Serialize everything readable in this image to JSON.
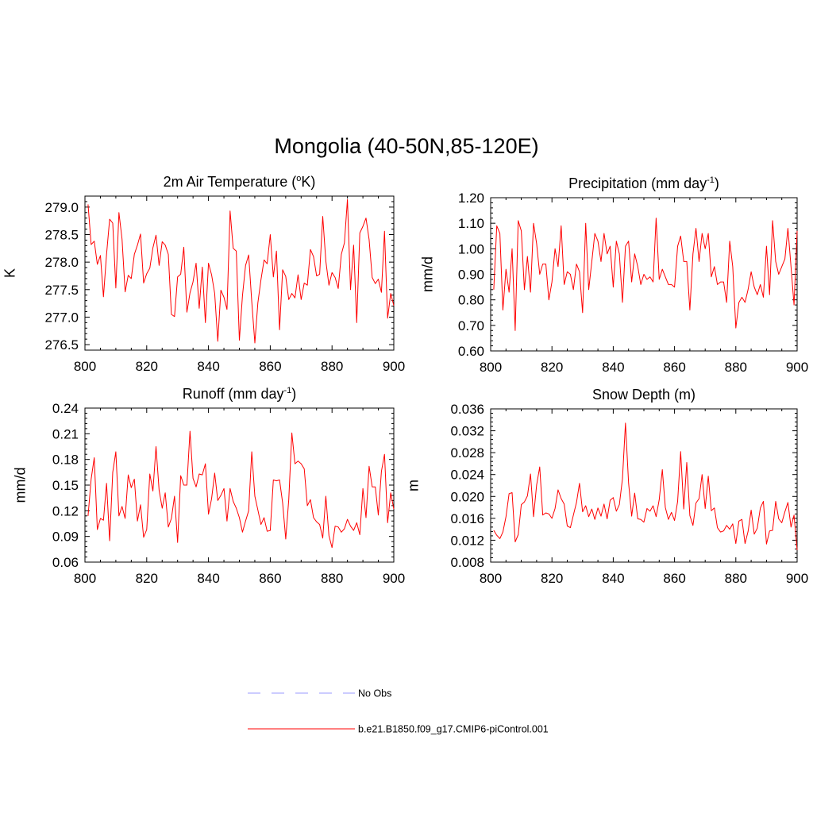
{
  "title": "Mongolia (40-50N,85-120E)",
  "line_color": "#ff0000",
  "obs_color": "#9999ff",
  "legend": {
    "obs_label": "No Obs",
    "model_label": "b.e21.B1850.f09_g17.CMIP6-piControl.001"
  },
  "chart_data": [
    {
      "type": "line",
      "title": "2m Air Temperature (",
      "title_sup": "o",
      "title_after": "K)",
      "ylabel": "K",
      "xlim": [
        800,
        900
      ],
      "ylim": [
        276.4,
        279.2
      ],
      "xticks": [
        800,
        820,
        840,
        860,
        880,
        900
      ],
      "xticklabels": [
        "800",
        "820",
        "840",
        "860",
        "880",
        "900"
      ],
      "yticks": [
        276.5,
        277.0,
        277.5,
        278.0,
        278.5,
        279.0
      ],
      "yticklabels": [
        "276.5",
        "277.0",
        "277.5",
        "278.0",
        "278.5",
        "279.0"
      ],
      "x_start": 801,
      "values": [
        279.05,
        278.32,
        278.38,
        277.96,
        278.12,
        277.37,
        278.14,
        278.78,
        278.71,
        277.53,
        278.9,
        278.42,
        277.46,
        277.76,
        277.7,
        278.14,
        278.31,
        278.51,
        277.62,
        277.79,
        277.89,
        278.26,
        278.49,
        277.94,
        278.37,
        278.31,
        278.14,
        277.05,
        277.01,
        277.73,
        277.78,
        278.27,
        277.09,
        277.44,
        277.64,
        277.98,
        277.16,
        277.91,
        276.9,
        277.98,
        277.77,
        277.43,
        276.56,
        277.49,
        277.36,
        277.14,
        278.93,
        278.25,
        278.2,
        276.58,
        277.39,
        277.94,
        278.13,
        277.28,
        276.53,
        277.26,
        277.68,
        278.04,
        277.97,
        278.5,
        277.73,
        278.2,
        276.77,
        277.86,
        277.74,
        277.32,
        277.43,
        277.35,
        277.77,
        277.32,
        277.62,
        277.58,
        278.23,
        278.1,
        277.75,
        277.78,
        278.83,
        278.02,
        277.58,
        277.81,
        277.72,
        277.52,
        278.14,
        278.35,
        279.14,
        277.5,
        278.31,
        276.9,
        278.53,
        278.65,
        278.8,
        278.41,
        277.72,
        277.61,
        277.69,
        277.45,
        278.56,
        276.98,
        277.43,
        277.21
      ]
    },
    {
      "type": "line",
      "title": "Precipitation (mm day",
      "title_sup": "-1",
      "title_after": ")",
      "ylabel": "mm/d",
      "xlim": [
        800,
        900
      ],
      "ylim": [
        0.6,
        1.2
      ],
      "xticks": [
        800,
        820,
        840,
        860,
        880,
        900
      ],
      "xticklabels": [
        "800",
        "820",
        "840",
        "860",
        "880",
        "900"
      ],
      "yticks": [
        0.6,
        0.7,
        0.8,
        0.9,
        1.0,
        1.1,
        1.2
      ],
      "yticklabels": [
        "0.60",
        "0.70",
        "0.80",
        "0.90",
        "1.00",
        "1.10",
        "1.20"
      ],
      "x_start": 801,
      "values": [
        0.84,
        1.09,
        1.06,
        0.76,
        0.92,
        0.83,
        1.0,
        0.68,
        1.11,
        1.07,
        0.84,
        0.97,
        0.83,
        1.1,
        1.02,
        0.9,
        0.94,
        0.94,
        0.8,
        0.87,
        1.0,
        0.93,
        1.09,
        0.86,
        0.91,
        0.9,
        0.84,
        0.94,
        0.91,
        0.75,
        1.1,
        0.84,
        0.95,
        1.06,
        1.03,
        0.95,
        1.06,
        0.98,
        1.01,
        0.85,
        1.03,
        0.98,
        0.79,
        1.01,
        1.03,
        0.87,
        0.98,
        0.93,
        0.86,
        0.9,
        0.88,
        0.89,
        0.87,
        1.12,
        0.88,
        0.92,
        0.89,
        0.86,
        0.86,
        0.85,
        1.01,
        1.05,
        0.95,
        0.95,
        0.76,
        0.98,
        1.08,
        0.95,
        1.06,
        1.0,
        1.06,
        0.89,
        0.93,
        0.86,
        0.87,
        0.87,
        0.79,
        1.03,
        0.93,
        0.69,
        0.79,
        0.81,
        0.79,
        0.84,
        0.91,
        0.85,
        0.82,
        0.86,
        0.81,
        1.01,
        0.82,
        1.11,
        0.95,
        0.9,
        0.93,
        0.96,
        1.08,
        0.93,
        0.78,
        1.07
      ]
    },
    {
      "type": "line",
      "title": "Runoff (mm day",
      "title_sup": "-1",
      "title_after": ")",
      "ylabel": "mm/d",
      "xlim": [
        800,
        900
      ],
      "ylim": [
        0.06,
        0.24
      ],
      "xticks": [
        800,
        820,
        840,
        860,
        880,
        900
      ],
      "xticklabels": [
        "800",
        "820",
        "840",
        "860",
        "880",
        "900"
      ],
      "yticks": [
        0.06,
        0.09,
        0.12,
        0.15,
        0.18,
        0.21,
        0.24
      ],
      "yticklabels": [
        "0.06",
        "0.09",
        "0.12",
        "0.15",
        "0.18",
        "0.21",
        "0.24"
      ],
      "x_start": 801,
      "values": [
        0.114,
        0.157,
        0.182,
        0.098,
        0.111,
        0.109,
        0.152,
        0.085,
        0.165,
        0.189,
        0.114,
        0.125,
        0.111,
        0.162,
        0.147,
        0.157,
        0.108,
        0.127,
        0.089,
        0.098,
        0.163,
        0.143,
        0.195,
        0.144,
        0.123,
        0.141,
        0.101,
        0.111,
        0.137,
        0.083,
        0.161,
        0.15,
        0.15,
        0.213,
        0.158,
        0.148,
        0.163,
        0.162,
        0.175,
        0.116,
        0.134,
        0.164,
        0.132,
        0.138,
        0.146,
        0.108,
        0.146,
        0.131,
        0.123,
        0.112,
        0.095,
        0.108,
        0.12,
        0.189,
        0.137,
        0.121,
        0.104,
        0.112,
        0.096,
        0.097,
        0.156,
        0.155,
        0.156,
        0.129,
        0.087,
        0.133,
        0.211,
        0.175,
        0.178,
        0.175,
        0.169,
        0.126,
        0.133,
        0.112,
        0.107,
        0.104,
        0.088,
        0.137,
        0.091,
        0.077,
        0.102,
        0.101,
        0.095,
        0.099,
        0.11,
        0.102,
        0.097,
        0.106,
        0.092,
        0.146,
        0.112,
        0.172,
        0.148,
        0.148,
        0.115,
        0.166,
        0.186,
        0.106,
        0.141,
        0.122
      ]
    },
    {
      "type": "line",
      "title": "Snow Depth (m)",
      "ylabel": "m",
      "xlim": [
        800,
        900
      ],
      "ylim": [
        0.008,
        0.036
      ],
      "xticks": [
        800,
        820,
        840,
        860,
        880,
        900
      ],
      "xticklabels": [
        "800",
        "820",
        "840",
        "860",
        "880",
        "900"
      ],
      "yticks": [
        0.008,
        0.012,
        0.016,
        0.02,
        0.024,
        0.028,
        0.032,
        0.036
      ],
      "yticklabels": [
        "0.008",
        "0.012",
        "0.016",
        "0.020",
        "0.024",
        "0.028",
        "0.032",
        "0.036"
      ],
      "x_start": 801,
      "values": [
        0.0138,
        0.0129,
        0.0123,
        0.0135,
        0.0163,
        0.0205,
        0.0207,
        0.0117,
        0.013,
        0.0185,
        0.019,
        0.0201,
        0.0241,
        0.0163,
        0.0221,
        0.0254,
        0.0166,
        0.017,
        0.0168,
        0.016,
        0.0178,
        0.0212,
        0.0196,
        0.0186,
        0.0146,
        0.0143,
        0.0166,
        0.0189,
        0.0224,
        0.0172,
        0.0183,
        0.0163,
        0.0177,
        0.0158,
        0.0179,
        0.0164,
        0.0186,
        0.0159,
        0.0193,
        0.0198,
        0.0173,
        0.0185,
        0.0232,
        0.0334,
        0.0225,
        0.0164,
        0.0206,
        0.0159,
        0.0158,
        0.0153,
        0.0178,
        0.0173,
        0.0183,
        0.0163,
        0.0194,
        0.0249,
        0.018,
        0.0158,
        0.0171,
        0.0156,
        0.0191,
        0.0282,
        0.0177,
        0.0262,
        0.0165,
        0.0147,
        0.0188,
        0.0196,
        0.024,
        0.0178,
        0.0237,
        0.0174,
        0.0179,
        0.0143,
        0.0135,
        0.0137,
        0.0147,
        0.014,
        0.015,
        0.0114,
        0.0155,
        0.0158,
        0.0114,
        0.0136,
        0.0175,
        0.0131,
        0.0142,
        0.0179,
        0.0191,
        0.0113,
        0.0137,
        0.0138,
        0.0191,
        0.0159,
        0.0152,
        0.0172,
        0.0189,
        0.0144,
        0.0166,
        0.0102
      ]
    }
  ]
}
